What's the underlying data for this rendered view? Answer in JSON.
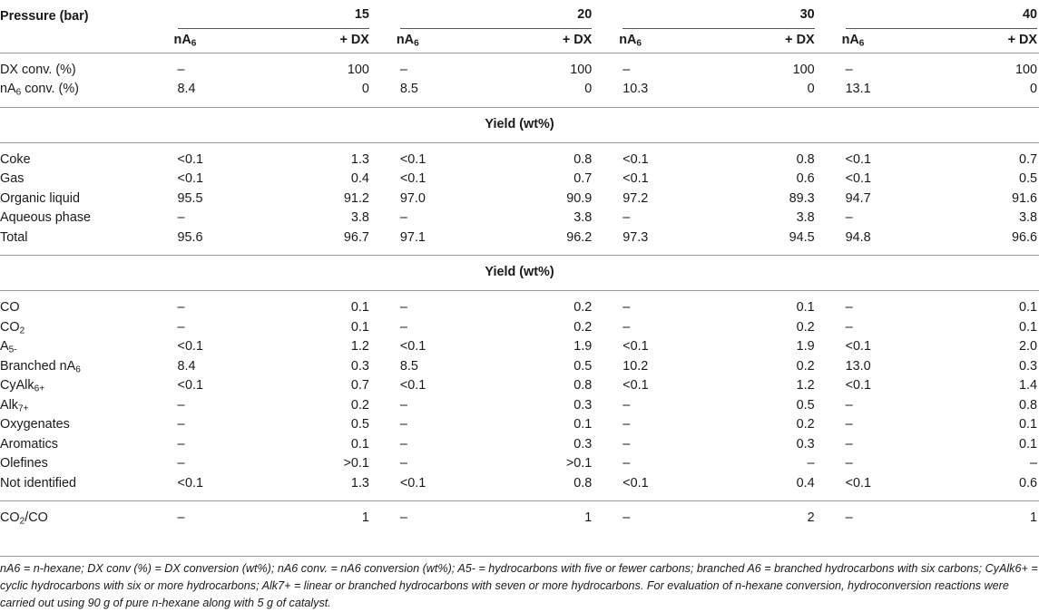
{
  "header": {
    "pressure_label": "Pressure (bar)",
    "pressures": [
      "15",
      "20",
      "30",
      "40"
    ],
    "sub_a_main": "nA",
    "sub_a_sub": "6",
    "sub_b": "+ DX"
  },
  "conv_rows": [
    {
      "label": "DX conv. (%)",
      "values": [
        "–",
        "100",
        "–",
        "100",
        "–",
        "100",
        "–",
        "100"
      ]
    },
    {
      "label_main": "nA",
      "label_sub": "6",
      "label_rest": " conv. (%)",
      "values": [
        "8.4",
        "0",
        "8.5",
        "0",
        "10.3",
        "0",
        "13.1",
        "0"
      ]
    }
  ],
  "section1": {
    "title": "Yield (wt%)",
    "rows": [
      {
        "label": "Coke",
        "values": [
          "<0.1",
          "1.3",
          "<0.1",
          "0.8",
          "<0.1",
          "0.8",
          "<0.1",
          "0.7"
        ]
      },
      {
        "label": "Gas",
        "values": [
          "<0.1",
          "0.4",
          "<0.1",
          "0.7",
          "<0.1",
          "0.6",
          "<0.1",
          "0.5"
        ]
      },
      {
        "label": "Organic liquid",
        "values": [
          "95.5",
          "91.2",
          "97.0",
          "90.9",
          "97.2",
          "89.3",
          "94.7",
          "91.6"
        ]
      },
      {
        "label": "Aqueous phase",
        "values": [
          "–",
          "3.8",
          "–",
          "3.8",
          "–",
          "3.8",
          "–",
          "3.8"
        ]
      },
      {
        "label": "Total",
        "values": [
          "95.6",
          "96.7",
          "97.1",
          "96.2",
          "97.3",
          "94.5",
          "94.8",
          "96.6"
        ]
      }
    ]
  },
  "section2": {
    "title": "Yield (wt%)",
    "rows": [
      {
        "label_main": "CO",
        "label_sub": "",
        "label_rest": "",
        "values": [
          "–",
          "0.1",
          "–",
          "0.2",
          "–",
          "0.1",
          "–",
          "0.1"
        ]
      },
      {
        "label_main": "CO",
        "label_sub": "2",
        "label_rest": "",
        "values": [
          "–",
          "0.1",
          "–",
          "0.2",
          "–",
          "0.2",
          "–",
          "0.1"
        ]
      },
      {
        "label_main": "A",
        "label_sub": "5-",
        "label_rest": "",
        "values": [
          "<0.1",
          "1.2",
          "<0.1",
          "1.9",
          "<0.1",
          "1.9",
          "<0.1",
          "2.0"
        ]
      },
      {
        "label_main": "Branched nA",
        "label_sub": "6",
        "label_rest": "",
        "values": [
          "8.4",
          "0.3",
          "8.5",
          "0.5",
          "10.2",
          "0.2",
          "13.0",
          "0.3"
        ]
      },
      {
        "label_main": "CyAlk",
        "label_sub": "6+",
        "label_rest": "",
        "values": [
          "<0.1",
          "0.7",
          "<0.1",
          "0.8",
          "<0.1",
          "1.2",
          "<0.1",
          "1.4"
        ]
      },
      {
        "label_main": "Alk",
        "label_sub": "7+",
        "label_rest": "",
        "values": [
          "–",
          "0.2",
          "–",
          "0.3",
          "–",
          "0.5",
          "–",
          "0.8"
        ]
      },
      {
        "label_main": "Oxygenates",
        "label_sub": "",
        "label_rest": "",
        "values": [
          "–",
          "0.5",
          "–",
          "0.1",
          "–",
          "0.2",
          "–",
          "0.1"
        ]
      },
      {
        "label_main": "Aromatics",
        "label_sub": "",
        "label_rest": "",
        "values": [
          "–",
          "0.1",
          "–",
          "0.3",
          "–",
          "0.3",
          "–",
          "0.1"
        ]
      },
      {
        "label_main": "Olefines",
        "label_sub": "",
        "label_rest": "",
        "values": [
          "–",
          ">0.1",
          "–",
          ">0.1",
          "–",
          "–",
          "–",
          "–"
        ]
      },
      {
        "label_main": "Not identified",
        "label_sub": "",
        "label_rest": "",
        "values": [
          "<0.1",
          "1.3",
          "<0.1",
          "0.8",
          "<0.1",
          "0.4",
          "<0.1",
          "0.6"
        ]
      }
    ]
  },
  "ratio_row": {
    "label_main": "CO",
    "label_sub": "2",
    "label_rest": "/CO",
    "values": [
      "–",
      "1",
      "–",
      "1",
      "–",
      "2",
      "–",
      "1"
    ]
  },
  "footnote": "nA6 = n-hexane; DX conv (%) = DX conversion (wt%); nA6 conv. = nA6 conversion (wt%); A5- = hydrocarbons with five or fewer carbons; branched A6 = branched hydrocarbons with six carbons; CyAlk6+ = cyclic hydrocarbons with six or more hydrocarbons; Alk7+ = linear or branched hydrocarbons with seven or more hydrocarbons. For evaluation of n-hexane conversion, hydroconversion reactions were carried out using 90 g of pure n-hexane along with 5 g of catalyst."
}
